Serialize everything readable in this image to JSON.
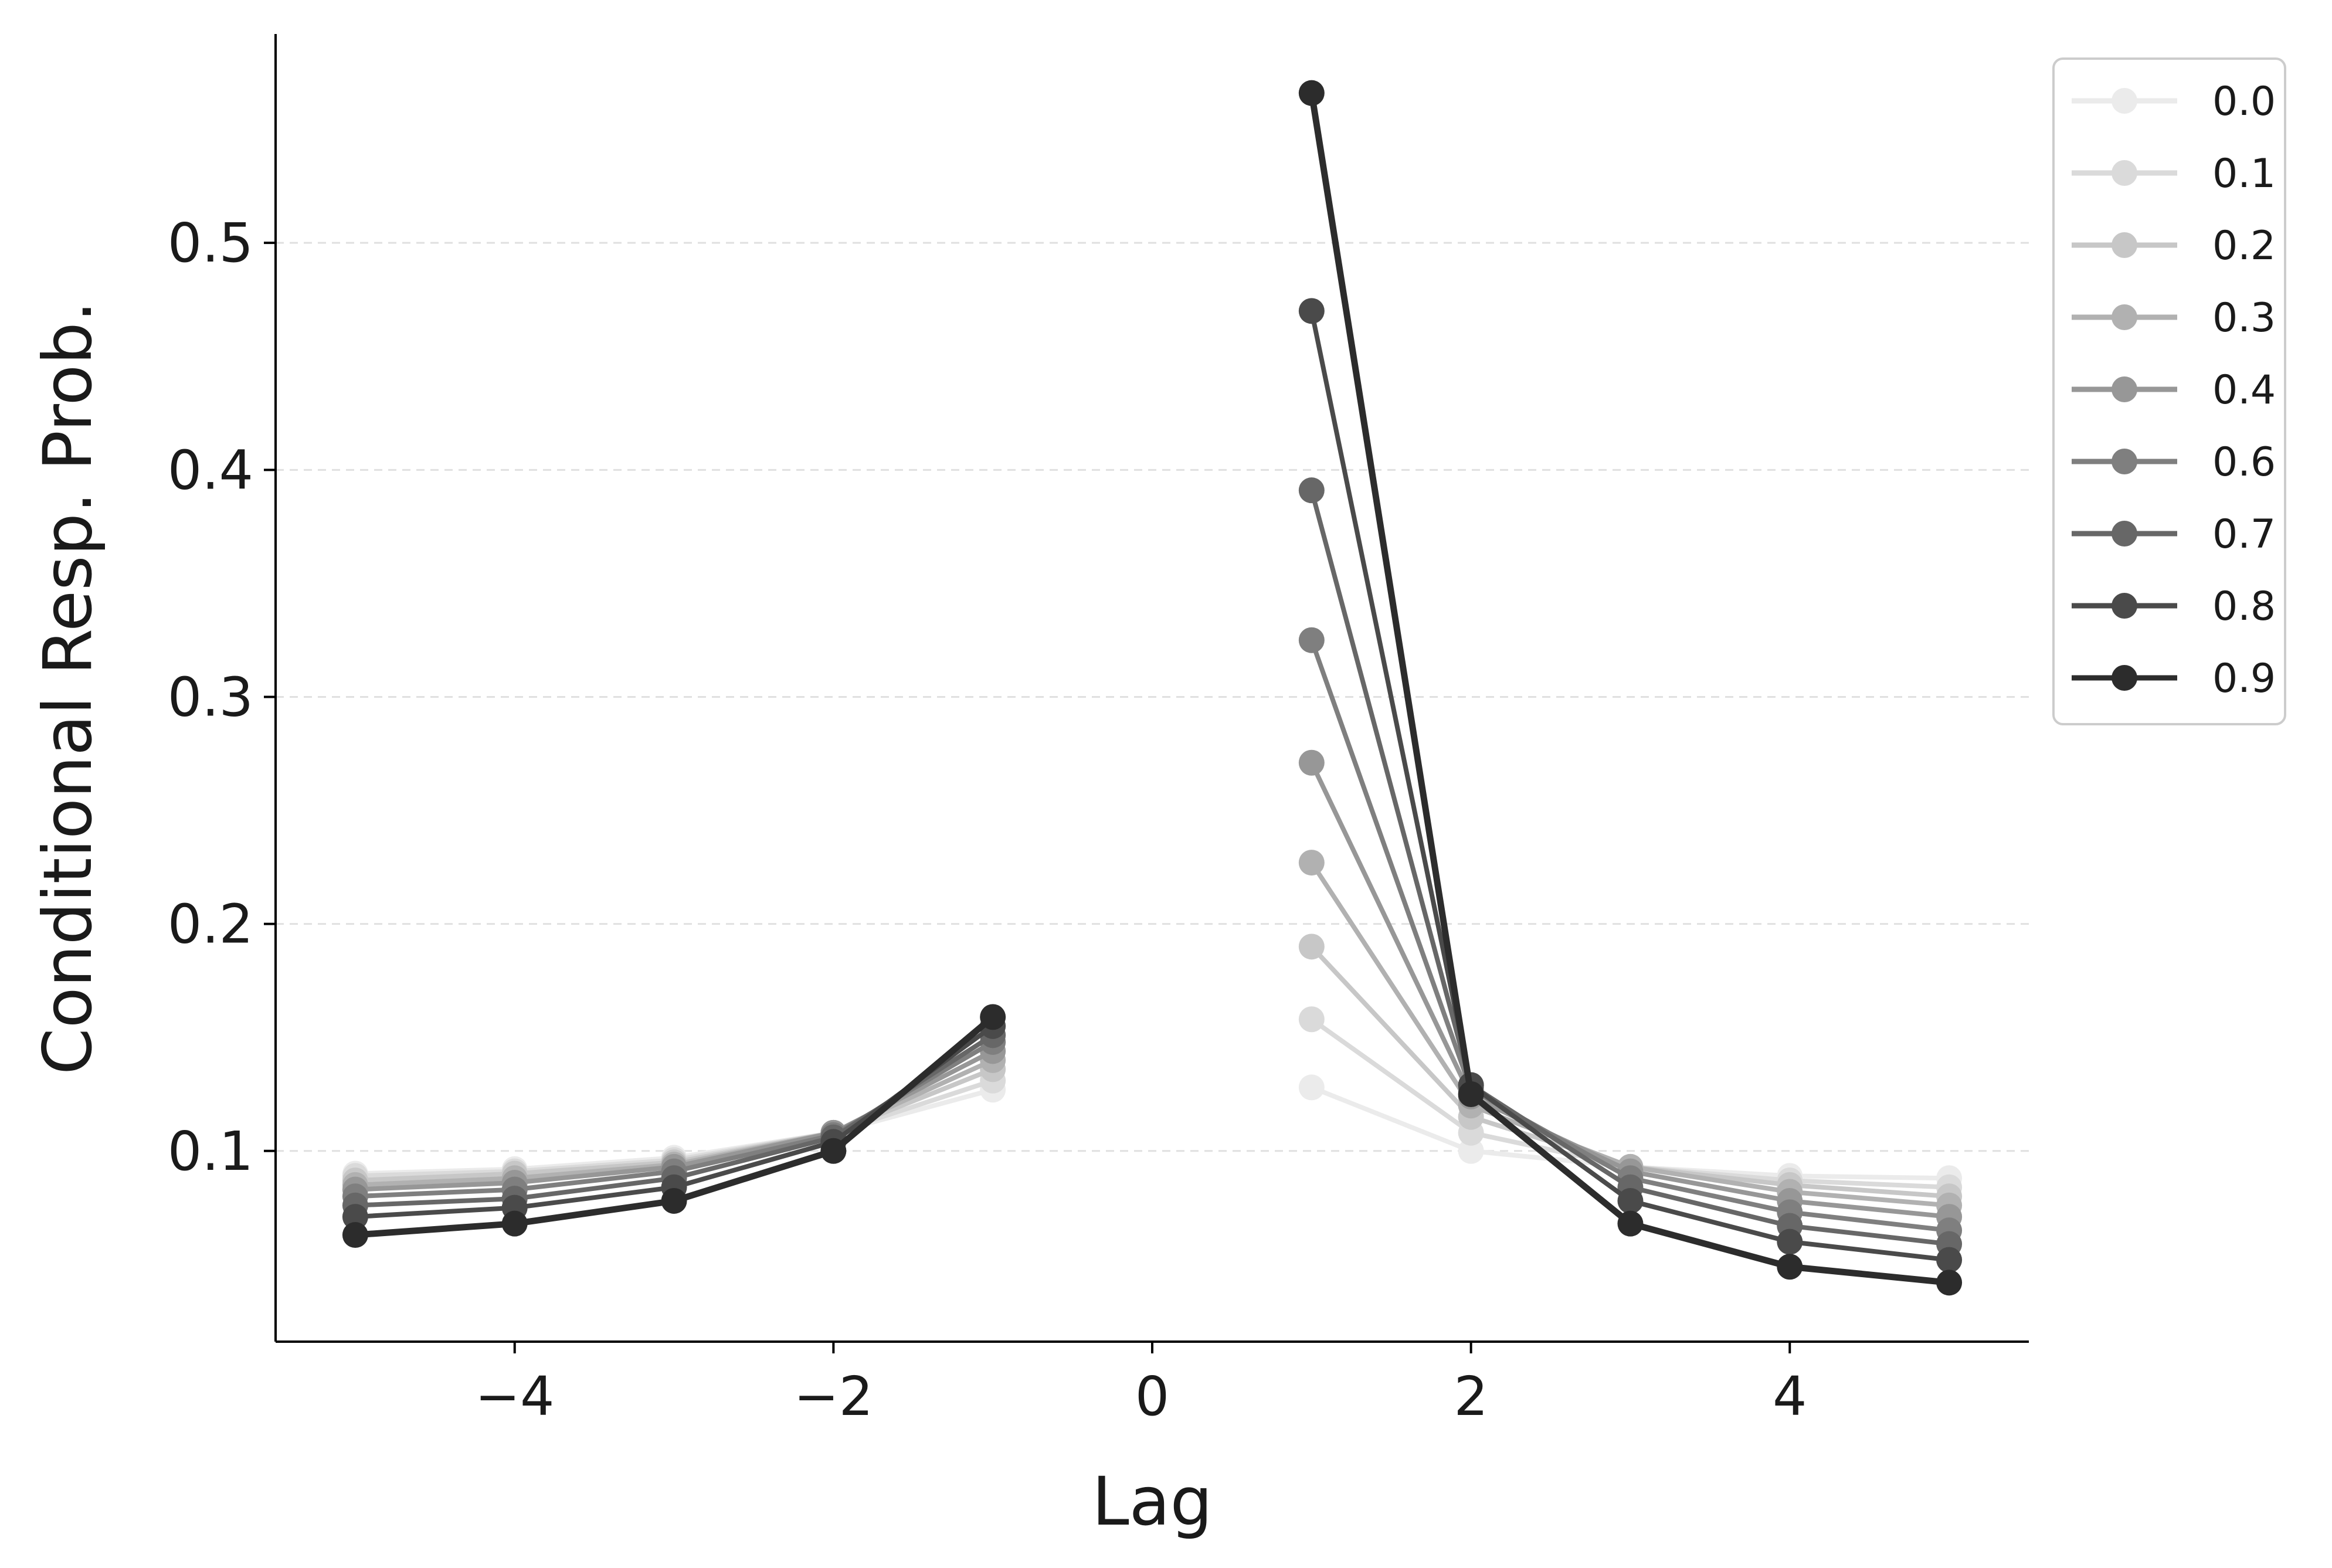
{
  "chart_data": {
    "type": "line",
    "title": "",
    "xlabel": "Lag",
    "ylabel": "Conditional Resp. Prob.",
    "xlim": [
      -5.5,
      5.5
    ],
    "ylim": [
      0.016,
      0.592
    ],
    "x_ticks": [
      -4,
      -2,
      0,
      2,
      4
    ],
    "x_tick_labels": [
      "−4",
      "−2",
      "0",
      "2",
      "4"
    ],
    "y_ticks": [
      0.1,
      0.2,
      0.3,
      0.4,
      0.5
    ],
    "y_tick_labels": [
      "0.1",
      "0.2",
      "0.3",
      "0.4",
      "0.5"
    ],
    "grid": "horizontal dashed",
    "legend_position": "upper-right outside",
    "x": [
      -5,
      -4,
      -3,
      -2,
      -1,
      1,
      2,
      3,
      4,
      5
    ],
    "series": [
      {
        "name": "0.0",
        "color": "#ebebeb",
        "values": [
          0.09,
          0.092,
          0.097,
          0.108,
          0.127,
          0.128,
          0.1,
          0.093,
          0.089,
          0.088
        ]
      },
      {
        "name": "0.1",
        "color": "#dadada",
        "values": [
          0.089,
          0.091,
          0.096,
          0.108,
          0.131,
          0.158,
          0.108,
          0.093,
          0.087,
          0.084
        ]
      },
      {
        "name": "0.2",
        "color": "#c7c7c7",
        "values": [
          0.087,
          0.09,
          0.095,
          0.108,
          0.136,
          0.19,
          0.115,
          0.093,
          0.085,
          0.08
        ]
      },
      {
        "name": "0.3",
        "color": "#b1b1b1",
        "values": [
          0.085,
          0.088,
          0.094,
          0.108,
          0.14,
          0.227,
          0.12,
          0.093,
          0.082,
          0.076
        ]
      },
      {
        "name": "0.4",
        "color": "#979797",
        "values": [
          0.083,
          0.086,
          0.093,
          0.108,
          0.144,
          0.271,
          0.124,
          0.091,
          0.078,
          0.071
        ]
      },
      {
        "name": "0.6",
        "color": "#7f7f7f",
        "values": [
          0.08,
          0.083,
          0.091,
          0.107,
          0.148,
          0.325,
          0.127,
          0.088,
          0.073,
          0.065
        ]
      },
      {
        "name": "0.7",
        "color": "#676767",
        "values": [
          0.076,
          0.079,
          0.088,
          0.106,
          0.151,
          0.391,
          0.129,
          0.084,
          0.067,
          0.059
        ]
      },
      {
        "name": "0.8",
        "color": "#4a4a4a",
        "values": [
          0.071,
          0.075,
          0.084,
          0.104,
          0.155,
          0.47,
          0.129,
          0.078,
          0.06,
          0.052
        ]
      },
      {
        "name": "0.9",
        "color": "#2c2c2c",
        "values": [
          0.063,
          0.068,
          0.078,
          0.1,
          0.159,
          0.566,
          0.125,
          0.068,
          0.049,
          0.042
        ]
      }
    ]
  }
}
